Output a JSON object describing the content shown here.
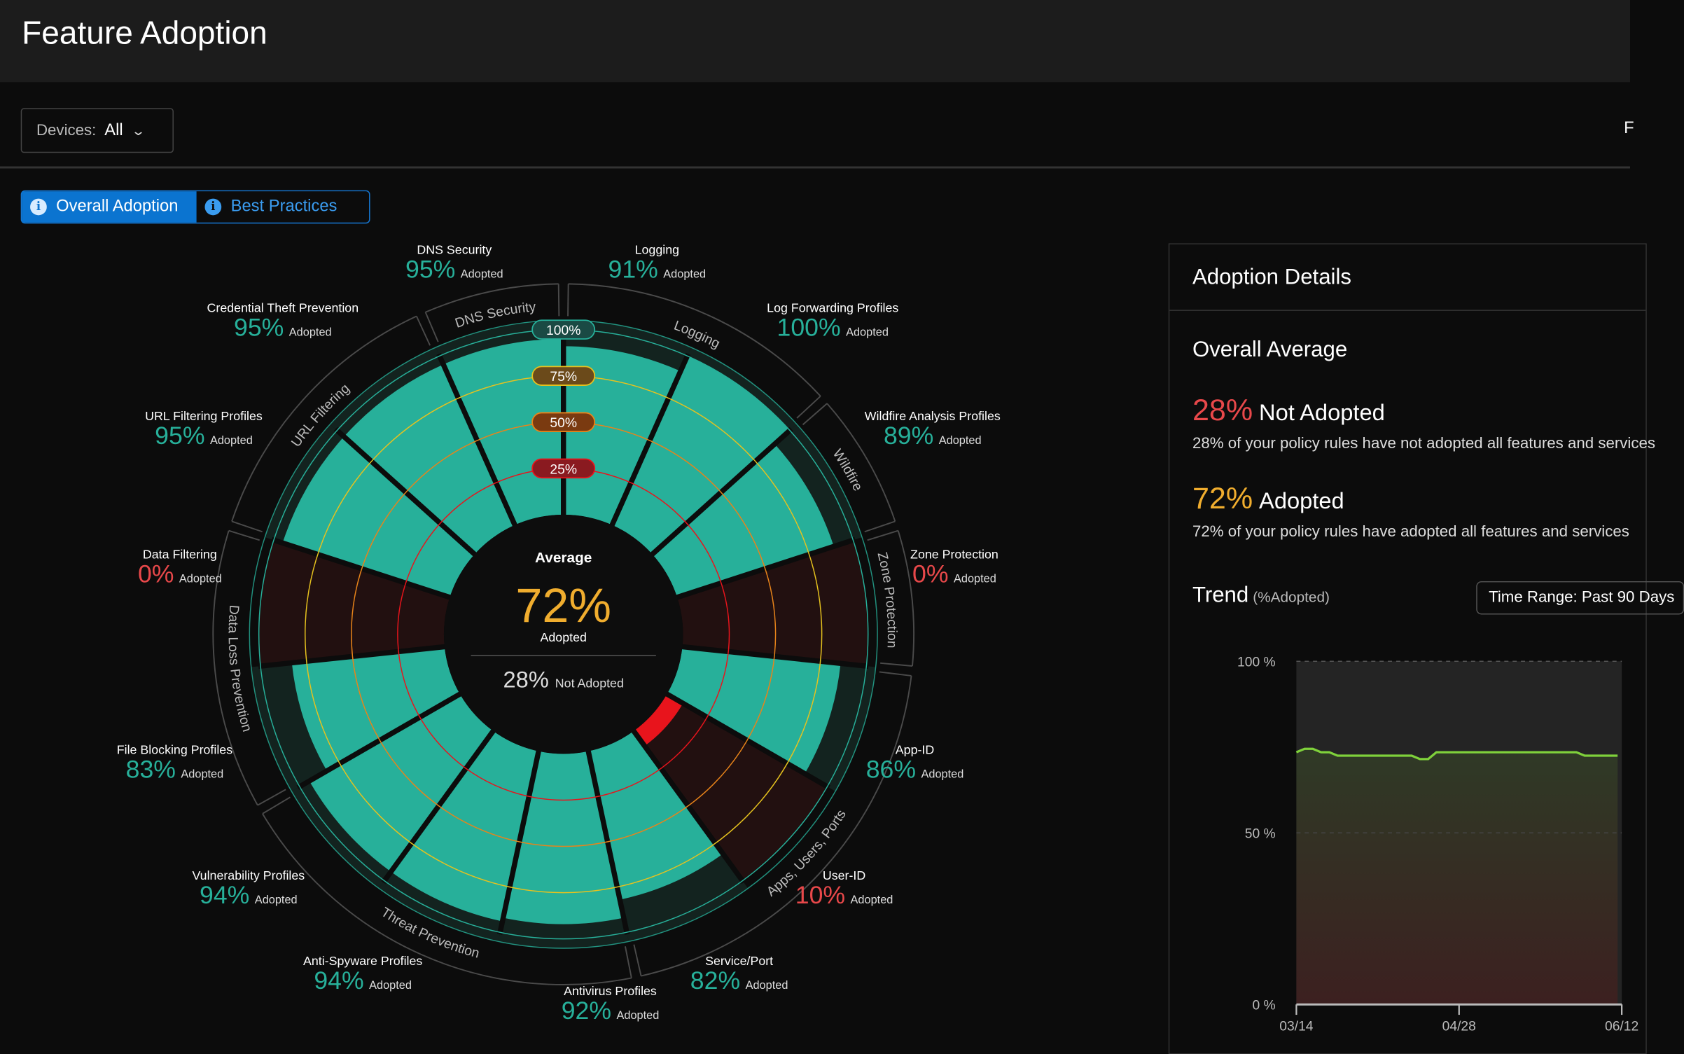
{
  "header": {
    "title": "Feature Adoption",
    "filter_button_partial": "F"
  },
  "toolbar": {
    "devices_label": "Devices:",
    "devices_value": "All"
  },
  "view_toggle": {
    "overall": "Overall Adoption",
    "best": "Best Practices"
  },
  "colors": {
    "teal": "#27b09a",
    "dark_teal": "#13231f",
    "dark_red": "#221010",
    "red": "#e8141c",
    "orange": "#e8841a",
    "yellow": "#e6c21e",
    "accent_blue": "#0b74d0",
    "adopted_orange": "#f0ad2e",
    "not_adopted_red": "#e8484a"
  },
  "center": {
    "title": "Average",
    "adopted_value": "72%",
    "adopted_label": "Adopted",
    "not_adopted_value": "28%",
    "not_adopted_label": "Not Adopted"
  },
  "ring_labels": [
    "25%",
    "50%",
    "75%",
    "100%"
  ],
  "adopted_word": "Adopted",
  "features": [
    {
      "name": "Logging",
      "value": 91,
      "label": "91%"
    },
    {
      "name": "Log Forwarding Profiles",
      "value": 100,
      "label": "100%"
    },
    {
      "name": "Wildfire Analysis Profiles",
      "value": 89,
      "label": "89%"
    },
    {
      "name": "Zone Protection",
      "value": 0,
      "label": "0%"
    },
    {
      "name": "App-ID",
      "value": 86,
      "label": "86%"
    },
    {
      "name": "User-ID",
      "value": 10,
      "label": "10%"
    },
    {
      "name": "Service/Port",
      "value": 82,
      "label": "82%"
    },
    {
      "name": "Antivirus Profiles",
      "value": 92,
      "label": "92%"
    },
    {
      "name": "Anti-Spyware Profiles",
      "value": 94,
      "label": "94%"
    },
    {
      "name": "Vulnerability Profiles",
      "value": 94,
      "label": "94%"
    },
    {
      "name": "File Blocking Profiles",
      "value": 83,
      "label": "83%"
    },
    {
      "name": "Data Filtering",
      "value": 0,
      "label": "0%"
    },
    {
      "name": "URL Filtering Profiles",
      "value": 95,
      "label": "95%"
    },
    {
      "name": "Credential Theft Prevention",
      "value": 95,
      "label": "95%"
    },
    {
      "name": "DNS Security",
      "value": 95,
      "label": "95%"
    }
  ],
  "groups": [
    {
      "name": "Logging",
      "from": 0,
      "to": 2
    },
    {
      "name": "Wildfire",
      "from": 2,
      "to": 3
    },
    {
      "name": "Zone Protection",
      "from": 3,
      "to": 4
    },
    {
      "name": "Apps, Users, Ports",
      "from": 4,
      "to": 7
    },
    {
      "name": "Threat Prevention",
      "from": 7,
      "to": 10
    },
    {
      "name": "Data Loss Prevention",
      "from": 10,
      "to": 12
    },
    {
      "name": "URL Filtering",
      "from": 12,
      "to": 14
    },
    {
      "name": "DNS Security",
      "from": 14,
      "to": 15
    }
  ],
  "details": {
    "title": "Adoption Details",
    "overall": "Overall Average",
    "not_adopted_pct": "28%",
    "not_adopted_label": "Not Adopted",
    "not_adopted_desc": "28% of your policy rules have not adopted all features and services",
    "adopted_pct": "72%",
    "adopted_label": "Adopted",
    "adopted_desc": "72% of your policy rules have adopted all features and services",
    "trend": "Trend",
    "trend_sub": "(%Adopted)",
    "time_range": "Time Range: Past 90 Days"
  },
  "chart_data": {
    "type": "area",
    "title": "Trend (%Adopted)",
    "ylabel": "%Adopted",
    "ylim": [
      0,
      100
    ],
    "y_ticks": [
      "100 %",
      "50 %",
      "0 %"
    ],
    "x_ticks": [
      "03/14",
      "04/28",
      "06/12"
    ],
    "values": [
      73.5,
      74.5,
      74.5,
      73.5,
      73.5,
      72.5,
      72.5,
      72.5,
      72.5,
      72.5,
      72.5,
      72.5,
      72.5,
      72.5,
      72.5,
      71.5,
      71.5,
      73.5,
      73.5,
      73.5,
      73.5,
      73.5,
      73.5,
      73.5,
      73.5,
      73.5,
      73.5,
      73.5,
      73.5,
      73.5,
      73.5,
      73.5,
      73.5,
      73.5,
      73.5,
      72.5,
      72.5,
      72.5,
      72.5,
      72.5
    ]
  }
}
